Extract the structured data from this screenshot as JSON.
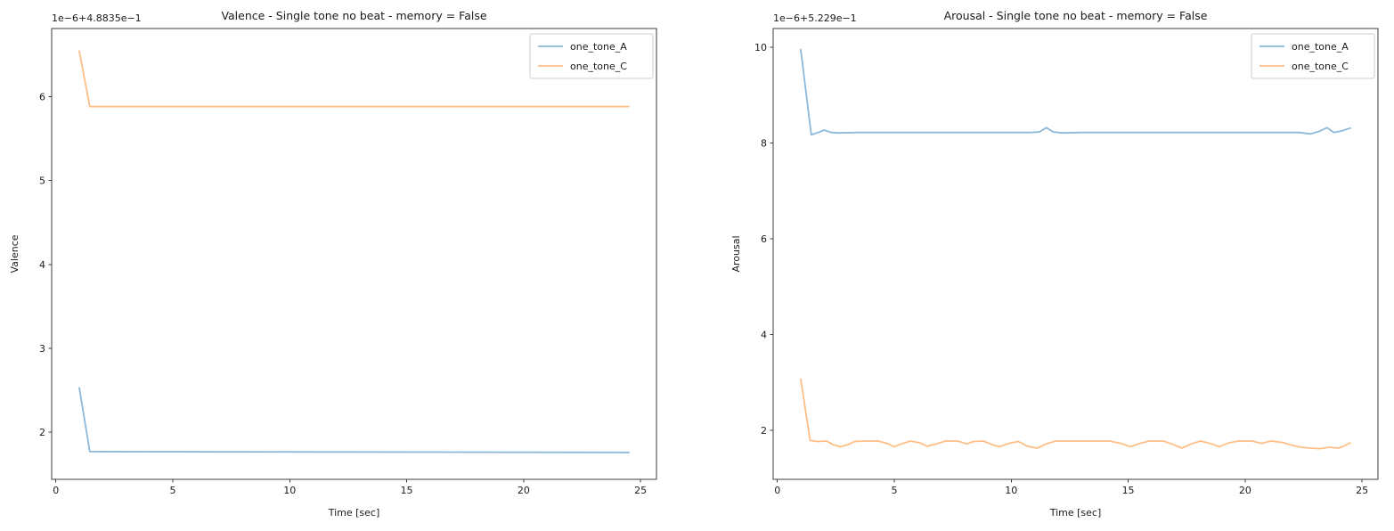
{
  "figure": {
    "background": "#ffffff"
  },
  "colors": {
    "spine": "#3c3c3c",
    "tick": "#3c3c3c",
    "text": "#1a1a1a",
    "legend_border": "#cccccc",
    "legend_background": "#ffffff",
    "series_blue": "#8cb8da",
    "series_orange": "#ffbe86"
  },
  "chart_data": [
    {
      "type": "line",
      "title": "Valence - Single tone no beat - memory = False",
      "xlabel": "Time [sec]",
      "ylabel": "Valence",
      "offset_text": "1e−6+4.8835e−1",
      "xlim": [
        -0.18,
        25.68
      ],
      "ylim": [
        1.44,
        6.81
      ],
      "xticks": [
        "0",
        "5",
        "10",
        "15",
        "20",
        "25"
      ],
      "xtick_values": [
        0,
        5,
        10,
        15,
        20,
        25
      ],
      "yticks": [
        "2",
        "3",
        "4",
        "5",
        "6"
      ],
      "ytick_values": [
        2,
        3,
        4,
        5,
        6
      ],
      "grid": false,
      "legend_position": "upper right",
      "legend_entries": [
        "one_tone_A",
        "one_tone_C"
      ],
      "series": [
        {
          "name": "one_tone_A",
          "color": "#8cb8da",
          "points": [
            [
              1,
              2.53
            ],
            [
              1.45,
              1.77
            ],
            [
              24.5,
              1.76
            ]
          ]
        },
        {
          "name": "one_tone_C",
          "color": "#ffbe86",
          "points": [
            [
              1,
              6.54
            ],
            [
              1.45,
              5.88
            ],
            [
              24.5,
              5.88
            ]
          ]
        }
      ]
    },
    {
      "type": "line",
      "title": "Arousal - Single tone no beat - memory = False",
      "xlabel": "Time [sec]",
      "ylabel": "Arousal",
      "offset_text": "1e−6+5.229e−1",
      "xlim": [
        -0.18,
        25.68
      ],
      "ylim": [
        0.98,
        10.39
      ],
      "xticks": [
        "0",
        "5",
        "10",
        "15",
        "20",
        "25"
      ],
      "xtick_values": [
        0,
        5,
        10,
        15,
        20,
        25
      ],
      "yticks": [
        "2",
        "4",
        "6",
        "8",
        "10"
      ],
      "ytick_values": [
        2,
        4,
        6,
        8,
        10
      ],
      "grid": false,
      "legend_position": "upper right",
      "legend_entries": [
        "one_tone_A",
        "one_tone_C"
      ],
      "series": [
        {
          "name": "one_tone_A",
          "color": "#8cb8da",
          "points": [
            [
              1,
              9.95
            ],
            [
              1.45,
              8.17
            ],
            [
              1.75,
              8.22
            ],
            [
              2.0,
              8.27
            ],
            [
              2.3,
              8.22
            ],
            [
              2.6,
              8.21
            ],
            [
              3.5,
              8.22
            ],
            [
              10.8,
              8.22
            ],
            [
              11.2,
              8.23
            ],
            [
              11.5,
              8.32
            ],
            [
              11.8,
              8.23
            ],
            [
              12.2,
              8.21
            ],
            [
              13,
              8.22
            ],
            [
              22.3,
              8.22
            ],
            [
              22.8,
              8.19
            ],
            [
              23.2,
              8.25
            ],
            [
              23.5,
              8.32
            ],
            [
              23.8,
              8.22
            ],
            [
              24.1,
              8.25
            ],
            [
              24.5,
              8.31
            ]
          ]
        },
        {
          "name": "one_tone_C",
          "color": "#ffbe86",
          "points": [
            [
              1,
              3.07
            ],
            [
              1.4,
              1.79
            ],
            [
              1.7,
              1.77
            ],
            [
              2.1,
              1.78
            ],
            [
              2.4,
              1.7
            ],
            [
              2.7,
              1.66
            ],
            [
              3.0,
              1.7
            ],
            [
              3.3,
              1.77
            ],
            [
              3.8,
              1.78
            ],
            [
              4.3,
              1.78
            ],
            [
              4.7,
              1.73
            ],
            [
              5.0,
              1.66
            ],
            [
              5.3,
              1.72
            ],
            [
              5.7,
              1.78
            ],
            [
              6.1,
              1.74
            ],
            [
              6.4,
              1.67
            ],
            [
              6.8,
              1.72
            ],
            [
              7.2,
              1.78
            ],
            [
              7.7,
              1.78
            ],
            [
              8.1,
              1.72
            ],
            [
              8.4,
              1.77
            ],
            [
              8.8,
              1.78
            ],
            [
              9.2,
              1.7
            ],
            [
              9.5,
              1.66
            ],
            [
              9.9,
              1.73
            ],
            [
              10.3,
              1.77
            ],
            [
              10.7,
              1.67
            ],
            [
              11.1,
              1.63
            ],
            [
              11.5,
              1.72
            ],
            [
              11.9,
              1.78
            ],
            [
              12.4,
              1.78
            ],
            [
              13.5,
              1.78
            ],
            [
              14.2,
              1.78
            ],
            [
              14.7,
              1.73
            ],
            [
              15.1,
              1.66
            ],
            [
              15.5,
              1.73
            ],
            [
              15.9,
              1.78
            ],
            [
              16.5,
              1.78
            ],
            [
              16.9,
              1.71
            ],
            [
              17.3,
              1.63
            ],
            [
              17.7,
              1.72
            ],
            [
              18.1,
              1.78
            ],
            [
              18.5,
              1.73
            ],
            [
              18.9,
              1.66
            ],
            [
              19.3,
              1.74
            ],
            [
              19.7,
              1.78
            ],
            [
              20.3,
              1.78
            ],
            [
              20.7,
              1.73
            ],
            [
              21.1,
              1.78
            ],
            [
              21.6,
              1.75
            ],
            [
              22.0,
              1.69
            ],
            [
              22.4,
              1.65
            ],
            [
              22.8,
              1.63
            ],
            [
              23.2,
              1.62
            ],
            [
              23.6,
              1.65
            ],
            [
              24.0,
              1.63
            ],
            [
              24.2,
              1.67
            ],
            [
              24.5,
              1.74
            ]
          ]
        }
      ]
    }
  ]
}
